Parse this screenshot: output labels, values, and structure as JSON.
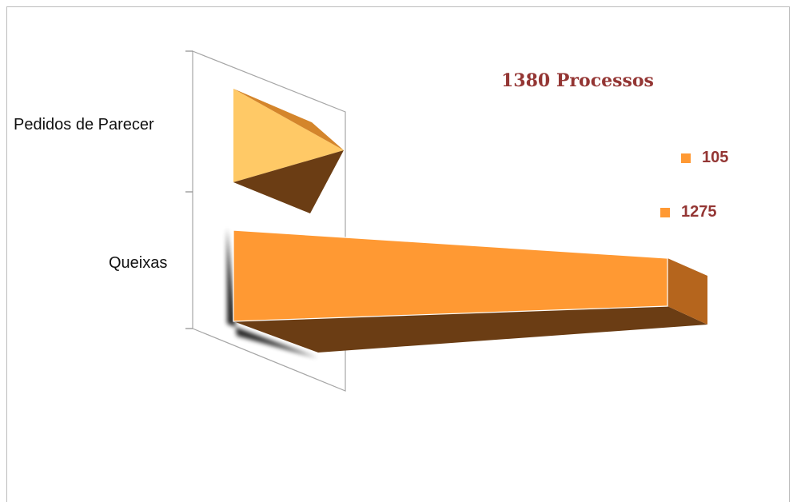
{
  "chart_data": {
    "type": "bar",
    "orientation": "horizontal",
    "style": "3d-pyramid",
    "title": "1380 Processos",
    "categories": [
      "Pedidos de Parecer",
      "Queixas"
    ],
    "values": [
      105,
      1275
    ],
    "legend": [
      {
        "label": "105",
        "color": "#ff9933"
      },
      {
        "label": "1275",
        "color": "#ff9933"
      }
    ],
    "legend_position": "right",
    "colors": {
      "front": "#ff9933",
      "front_light": "#ffc966",
      "side": "#b5651d",
      "bottom": "#6b3d14",
      "title": "#943634"
    }
  }
}
